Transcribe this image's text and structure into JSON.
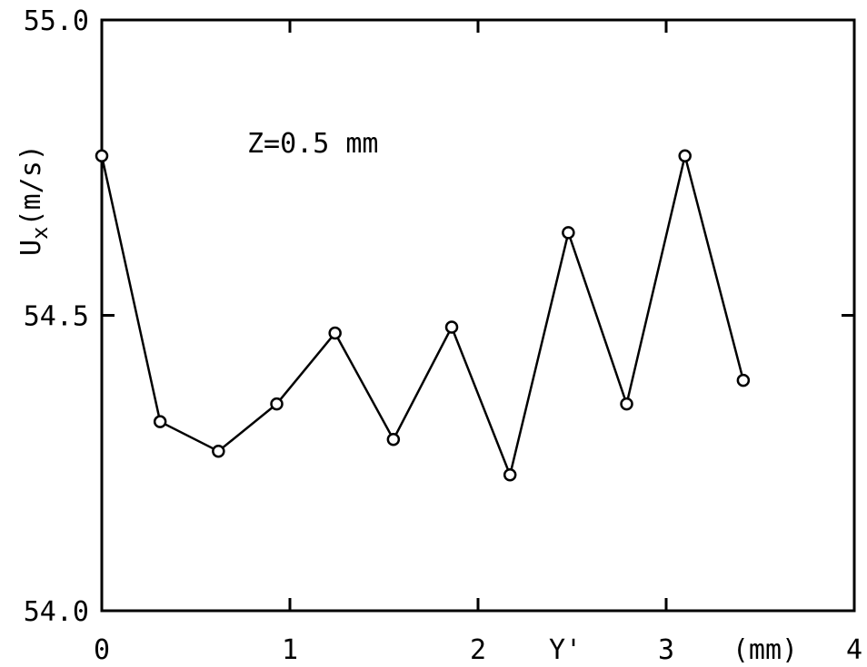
{
  "chart_data": {
    "type": "line",
    "annotation": "Z=0.5 mm",
    "ylabel_main": "U",
    "ylabel_sub": "x",
    "ylabel_units": "(m/s)",
    "xlabel": "Y'",
    "xunit": "(mm)",
    "xlim": [
      0,
      4
    ],
    "ylim": [
      54.0,
      55.0
    ],
    "x_ticks": [
      "0",
      "1",
      "2",
      "3",
      "4"
    ],
    "y_ticks": [
      "54.0",
      "54.5",
      "55.0"
    ],
    "marker": "open-circle",
    "line_color": "#000000",
    "grid": false,
    "series": [
      {
        "x": [
          0.0,
          0.31,
          0.62,
          0.93,
          1.24,
          1.55,
          1.86,
          2.17,
          2.48,
          2.79,
          3.1,
          3.41
        ],
        "y": [
          54.77,
          54.32,
          54.27,
          54.35,
          54.47,
          54.29,
          54.48,
          54.23,
          54.64,
          54.35,
          54.77,
          54.39
        ]
      }
    ]
  }
}
